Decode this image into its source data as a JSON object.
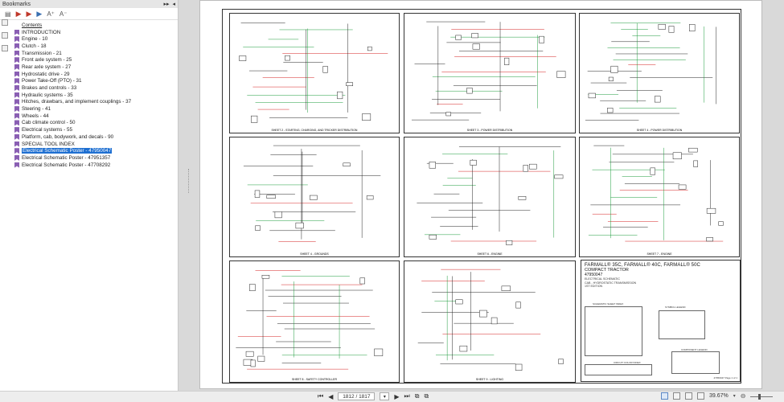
{
  "sidebar": {
    "title": "Bookmarks",
    "header_buttons": [
      "▸▸",
      "◂"
    ],
    "toolbar_icons": [
      "expand-icon",
      "bookmark-delete-icon",
      "bookmark-add-icon",
      "bookmark-properties-icon",
      "font-increase-icon",
      "font-decrease-icon"
    ],
    "font_increase": "A⁺",
    "font_decrease": "A⁻",
    "items": [
      {
        "label": "Contents",
        "style": "underline"
      },
      {
        "label": "INTRODUCTION"
      },
      {
        "label": "Engine - 10"
      },
      {
        "label": "Clutch - 18"
      },
      {
        "label": "Transmission - 21"
      },
      {
        "label": "Front axle system - 25"
      },
      {
        "label": "Rear axle system - 27"
      },
      {
        "label": "Hydrostatic drive - 29"
      },
      {
        "label": "Power Take-Off (PTO) - 31"
      },
      {
        "label": "Brakes and controls - 33"
      },
      {
        "label": "Hydraulic systems - 35"
      },
      {
        "label": "Hitches, drawbars, and implement couplings - 37"
      },
      {
        "label": "Steering - 41"
      },
      {
        "label": "Wheels - 44"
      },
      {
        "label": "Cab climate control - 50"
      },
      {
        "label": "Electrical systems - 55"
      },
      {
        "label": "Platform, cab, bodywork, and decals - 90"
      },
      {
        "label": "SPECIAL TOOL INDEX"
      },
      {
        "label": "Electrical Schematic Poster - 47950047",
        "selected": true
      },
      {
        "label": "Electrical Schematic Poster - 47951357"
      },
      {
        "label": "Electrical Schematic Poster - 47708292"
      }
    ]
  },
  "document": {
    "sheets": [
      {
        "label": "SHEET 2 - STARTING, CHARGING, AND TRICKER DISTRIBUTION"
      },
      {
        "label": "SHEET 3 - POWER DISTRIBUTION"
      },
      {
        "label": "SHEET 4 - POWER DISTRIBUTION"
      },
      {
        "label": "SHEET 4 - GROUNDS"
      },
      {
        "label": "SHEET 6 - ENGINE"
      },
      {
        "label": "SHEET 7 - ENGINE"
      },
      {
        "label": "SHEET 8 - SAFETY CONTROLLER"
      },
      {
        "label": "SHEET 9 - LIGHTING"
      }
    ],
    "title_block": {
      "model": "FARMALL® 35C, FARMALL® 40C, FARMALL® 50C",
      "type": "COMPACT TRACTOR",
      "part_number": "47950047",
      "line1": "ELECTRICAL SCHEMATIC",
      "line2": "CAB - HYDROSTATIC TRANSMISSION",
      "edition": "1ST EDITION",
      "sheet_index_caption": "SCHEMATIC SHEET INDEX",
      "symbol_legend_caption": "SYMBOL LEGEND",
      "component_legend_caption": "COMPONENT LEGEND",
      "circuit_color_caption": "CIRCUIT COLOR INDEX",
      "page_no": "47950047 Page 1 of 1"
    },
    "wire_colors": {
      "red": "#d42020",
      "green": "#1a9a3a",
      "black": "#222222"
    }
  },
  "statusbar": {
    "page_input": "1812 / 1817",
    "zoom": "39.67%",
    "zoom_level": 0.4
  }
}
